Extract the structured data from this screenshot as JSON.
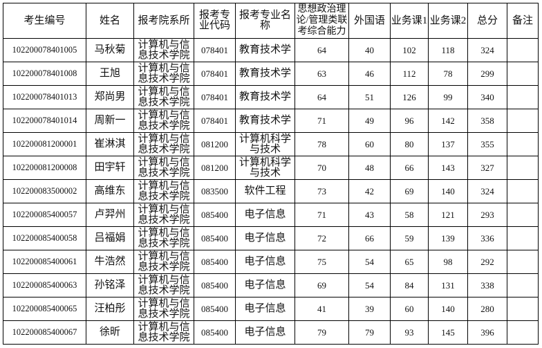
{
  "table": {
    "headers": [
      "考生编号",
      "姓名",
      "报考院系所",
      "报考专业代码",
      "报考专业名称",
      "思想政治理论/管理类联考综合能力",
      "外国语",
      "业务课1",
      "业务课2",
      "总分",
      "备注"
    ],
    "rows": [
      [
        "102200078401005",
        "马秋菊",
        "计算机与信息技术学院",
        "078401",
        "教育技术学",
        "64",
        "40",
        "102",
        "118",
        "324",
        ""
      ],
      [
        "102200078401008",
        "王旭",
        "计算机与信息技术学院",
        "078401",
        "教育技术学",
        "63",
        "46",
        "112",
        "78",
        "299",
        ""
      ],
      [
        "102200078401013",
        "郑尚男",
        "计算机与信息技术学院",
        "078401",
        "教育技术学",
        "64",
        "51",
        "126",
        "99",
        "340",
        ""
      ],
      [
        "102200078401014",
        "周新一",
        "计算机与信息技术学院",
        "078401",
        "教育技术学",
        "71",
        "49",
        "96",
        "142",
        "358",
        ""
      ],
      [
        "102200081200001",
        "崔淋淇",
        "计算机与信息技术学院",
        "081200",
        "计算机科学与技术",
        "78",
        "60",
        "80",
        "137",
        "355",
        ""
      ],
      [
        "102200081200008",
        "田宇轩",
        "计算机与信息技术学院",
        "081200",
        "计算机科学与技术",
        "70",
        "48",
        "66",
        "143",
        "327",
        ""
      ],
      [
        "102200083500002",
        "高维东",
        "计算机与信息技术学院",
        "083500",
        "软件工程",
        "73",
        "42",
        "69",
        "140",
        "324",
        ""
      ],
      [
        "102200085400057",
        "卢羿州",
        "计算机与信息技术学院",
        "085400",
        "电子信息",
        "71",
        "43",
        "58",
        "121",
        "293",
        ""
      ],
      [
        "102200085400058",
        "吕福娟",
        "计算机与信息技术学院",
        "085400",
        "电子信息",
        "72",
        "66",
        "59",
        "139",
        "336",
        ""
      ],
      [
        "102200085400061",
        "牛浩然",
        "计算机与信息技术学院",
        "085400",
        "电子信息",
        "75",
        "54",
        "65",
        "98",
        "292",
        ""
      ],
      [
        "102200085400063",
        "孙铭泽",
        "计算机与信息技术学院",
        "085400",
        "电子信息",
        "69",
        "54",
        "84",
        "131",
        "338",
        ""
      ],
      [
        "102200085400065",
        "汪柏彤",
        "计算机与信息技术学院",
        "085400",
        "电子信息",
        "41",
        "39",
        "60",
        "140",
        "280",
        ""
      ],
      [
        "102200085400067",
        "徐昕",
        "计算机与信息技术学院",
        "085400",
        "电子信息",
        "79",
        "79",
        "93",
        "145",
        "396",
        ""
      ]
    ]
  }
}
